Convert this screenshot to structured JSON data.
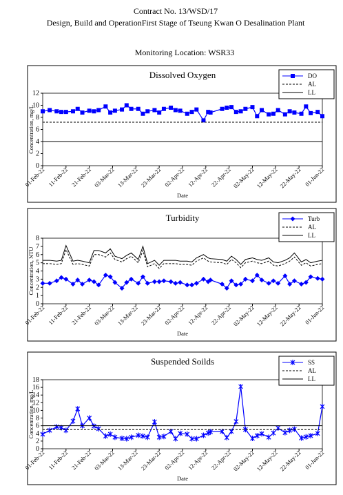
{
  "header": {
    "line1": "Contract No. 13/WSD/17",
    "line2": "Design, Build and OperationFirst Stage  of Tseung Kwan O Desalination Plant",
    "location": "Monitoring Location: WSR33"
  },
  "chart_data": [
    {
      "type": "line",
      "title": "Dissolved Oxygen",
      "ylabel": "Concentration, mg/L",
      "xlabel": "Date",
      "x": [
        "2022-02-01",
        "2022-02-04",
        "2022-02-07",
        "2022-02-09",
        "2022-02-11",
        "2022-02-14",
        "2022-02-16",
        "2022-02-18",
        "2022-02-21",
        "2022-02-23",
        "2022-02-25",
        "2022-02-28",
        "2022-03-02",
        "2022-03-04",
        "2022-03-07",
        "2022-03-09",
        "2022-03-11",
        "2022-03-14",
        "2022-03-16",
        "2022-03-18",
        "2022-03-21",
        "2022-03-23",
        "2022-03-25",
        "2022-03-28",
        "2022-03-30",
        "2022-04-01",
        "2022-04-04",
        "2022-04-06",
        "2022-04-08",
        "2022-04-11",
        "2022-04-13",
        "2022-04-14",
        "2022-04-19",
        "2022-04-21",
        "2022-04-23",
        "2022-04-25",
        "2022-04-27",
        "2022-04-29",
        "2022-05-02",
        "2022-05-04",
        "2022-05-06",
        "2022-05-09",
        "2022-05-11",
        "2022-05-13",
        "2022-05-16",
        "2022-05-18",
        "2022-05-20",
        "2022-05-23",
        "2022-05-25",
        "2022-05-27",
        "2022-05-30",
        "2022-06-01"
      ],
      "xlim": [
        "2022-02-01",
        "2022-06-01"
      ],
      "xticks": [
        {
          "value": "2022-02-01",
          "label": "01-Feb-22"
        },
        {
          "value": "2022-02-11",
          "label": "11-Feb-22"
        },
        {
          "value": "2022-02-21",
          "label": "21-Feb-22"
        },
        {
          "value": "2022-03-03",
          "label": "03-Mar-22"
        },
        {
          "value": "2022-03-13",
          "label": "13-Mar-22"
        },
        {
          "value": "2022-03-23",
          "label": "23-Mar-22"
        },
        {
          "value": "2022-04-02",
          "label": "02-Apr-22"
        },
        {
          "value": "2022-04-12",
          "label": "12-Apr-22"
        },
        {
          "value": "2022-04-22",
          "label": "22-Apr-22"
        },
        {
          "value": "2022-05-02",
          "label": "02-May-22"
        },
        {
          "value": "2022-05-12",
          "label": "12-May-22"
        },
        {
          "value": "2022-05-22",
          "label": "22-May-22"
        },
        {
          "value": "2022-06-01",
          "label": "01-Jun-22"
        }
      ],
      "ylim": [
        0,
        12
      ],
      "yticks": [
        0,
        2,
        4,
        6,
        8,
        10,
        12
      ],
      "series": [
        {
          "name": "DO",
          "color": "#0000ff",
          "marker": "square",
          "dash": false,
          "values": [
            9.0,
            9.2,
            9.0,
            8.9,
            8.9,
            9.0,
            9.4,
            8.8,
            9.1,
            9.0,
            9.2,
            9.8,
            8.8,
            9.1,
            9.3,
            10.0,
            9.4,
            9.4,
            8.6,
            9.0,
            9.2,
            8.8,
            9.4,
            9.6,
            9.2,
            9.1,
            8.6,
            8.9,
            9.3,
            7.5,
            8.9,
            8.8,
            9.4,
            9.6,
            9.7,
            8.9,
            9.0,
            9.4,
            9.7,
            8.2,
            9.2,
            8.5,
            8.6,
            9.2,
            8.5,
            9.0,
            8.8,
            8.6,
            9.8,
            8.7,
            8.9,
            8.2
          ]
        },
        {
          "name": "AL",
          "color": "#000000",
          "dash": true,
          "values": [
            7.2,
            7.2,
            7.2,
            7.2,
            7.2,
            7.2,
            7.2,
            7.2,
            7.2,
            7.2,
            7.2,
            7.2,
            7.2,
            7.2,
            7.2,
            7.2,
            7.2,
            7.2,
            7.2,
            7.2,
            7.2,
            7.2,
            7.2,
            7.2,
            7.2,
            7.2,
            7.2,
            7.2,
            7.2,
            7.2,
            7.2,
            7.2,
            7.2,
            7.2,
            7.2,
            7.2,
            7.2,
            7.2,
            7.2,
            7.2,
            7.2,
            7.2,
            7.2,
            7.2,
            7.2,
            7.2,
            7.2,
            7.2,
            7.2,
            7.2,
            7.2,
            7.2
          ]
        },
        {
          "name": "LL",
          "color": "#000000",
          "dash": false,
          "values": [
            4,
            4,
            4,
            4,
            4,
            4,
            4,
            4,
            4,
            4,
            4,
            4,
            4,
            4,
            4,
            4,
            4,
            4,
            4,
            4,
            4,
            4,
            4,
            4,
            4,
            4,
            4,
            4,
            4,
            4,
            4,
            4,
            4,
            4,
            4,
            4,
            4,
            4,
            4,
            4,
            4,
            4,
            4,
            4,
            4,
            4,
            4,
            4,
            4,
            4,
            4,
            4
          ]
        }
      ]
    },
    {
      "type": "line",
      "title": "Turbidity",
      "ylabel": "Concentration, NTU",
      "xlabel": "Date",
      "x": [
        "2022-02-01",
        "2022-02-04",
        "2022-02-07",
        "2022-02-09",
        "2022-02-11",
        "2022-02-14",
        "2022-02-16",
        "2022-02-18",
        "2022-02-21",
        "2022-02-23",
        "2022-02-25",
        "2022-02-28",
        "2022-03-02",
        "2022-03-04",
        "2022-03-07",
        "2022-03-09",
        "2022-03-11",
        "2022-03-14",
        "2022-03-16",
        "2022-03-18",
        "2022-03-21",
        "2022-03-23",
        "2022-03-25",
        "2022-03-28",
        "2022-03-30",
        "2022-04-01",
        "2022-04-04",
        "2022-04-06",
        "2022-04-08",
        "2022-04-11",
        "2022-04-13",
        "2022-04-14",
        "2022-04-19",
        "2022-04-21",
        "2022-04-23",
        "2022-04-25",
        "2022-04-27",
        "2022-04-29",
        "2022-05-02",
        "2022-05-04",
        "2022-05-06",
        "2022-05-09",
        "2022-05-11",
        "2022-05-13",
        "2022-05-16",
        "2022-05-18",
        "2022-05-20",
        "2022-05-23",
        "2022-05-25",
        "2022-05-27",
        "2022-05-30",
        "2022-06-01"
      ],
      "xlim": [
        "2022-02-01",
        "2022-06-01"
      ],
      "xticks": [
        {
          "value": "2022-02-01",
          "label": "01-Feb-22"
        },
        {
          "value": "2022-02-11",
          "label": "11-Feb-22"
        },
        {
          "value": "2022-02-21",
          "label": "21-Feb-22"
        },
        {
          "value": "2022-03-03",
          "label": "03-Mar-22"
        },
        {
          "value": "2022-03-13",
          "label": "13-Mar-22"
        },
        {
          "value": "2022-03-23",
          "label": "23-Mar-22"
        },
        {
          "value": "2022-04-02",
          "label": "02-Apr-22"
        },
        {
          "value": "2022-04-12",
          "label": "12-Apr-22"
        },
        {
          "value": "2022-04-22",
          "label": "22-Apr-22"
        },
        {
          "value": "2022-05-02",
          "label": "02-May-22"
        },
        {
          "value": "2022-05-12",
          "label": "12-May-22"
        },
        {
          "value": "2022-05-22",
          "label": "22-May-22"
        },
        {
          "value": "2022-06-01",
          "label": "01-Jun-22"
        }
      ],
      "ylim": [
        0,
        8
      ],
      "yticks": [
        0,
        1,
        2,
        3,
        4,
        5,
        6,
        7,
        8
      ],
      "series": [
        {
          "name": "Turb",
          "color": "#0000ff",
          "marker": "diamond",
          "dash": false,
          "values": [
            2.5,
            2.5,
            2.8,
            3.2,
            3.0,
            2.4,
            2.9,
            2.4,
            2.9,
            2.7,
            2.3,
            3.5,
            3.3,
            2.6,
            1.9,
            2.6,
            3.0,
            2.5,
            3.3,
            2.5,
            2.7,
            2.7,
            2.8,
            2.7,
            2.5,
            2.6,
            2.3,
            2.3,
            2.5,
            3.0,
            2.7,
            2.9,
            2.4,
            1.9,
            2.8,
            2.3,
            2.4,
            3.0,
            2.8,
            3.5,
            2.9,
            2.5,
            2.8,
            2.5,
            3.4,
            2.4,
            2.8,
            2.4,
            2.6,
            3.3,
            3.1,
            3.0
          ]
        },
        {
          "name": "AL",
          "color": "#000000",
          "dash": true,
          "values": [
            4.9,
            4.9,
            4.8,
            4.9,
            6.6,
            4.8,
            4.9,
            4.8,
            4.6,
            6.0,
            6.0,
            5.7,
            6.2,
            5.4,
            5.1,
            5.5,
            5.8,
            5.0,
            6.5,
            4.5,
            4.9,
            4.3,
            4.9,
            4.9,
            4.9,
            4.8,
            4.8,
            4.7,
            5.2,
            5.6,
            5.2,
            5.1,
            5.0,
            4.8,
            5.4,
            5.0,
            4.4,
            5.0,
            5.2,
            5.0,
            4.9,
            5.2,
            4.7,
            4.6,
            4.9,
            5.2,
            5.7,
            4.7,
            5.0,
            4.6,
            4.8,
            4.9
          ]
        },
        {
          "name": "LL",
          "color": "#000000",
          "dash": false,
          "values": [
            5.3,
            5.3,
            5.2,
            5.3,
            7.1,
            5.2,
            5.3,
            5.2,
            5.0,
            6.5,
            6.5,
            6.2,
            6.7,
            5.8,
            5.5,
            5.9,
            6.2,
            5.4,
            7.0,
            4.9,
            5.3,
            4.7,
            5.3,
            5.3,
            5.3,
            5.2,
            5.2,
            5.1,
            5.6,
            6.0,
            5.6,
            5.5,
            5.4,
            5.2,
            5.8,
            5.4,
            4.8,
            5.4,
            5.6,
            5.4,
            5.3,
            5.6,
            5.1,
            5.0,
            5.3,
            5.6,
            6.2,
            5.1,
            5.4,
            5.0,
            5.2,
            5.3
          ]
        }
      ]
    },
    {
      "type": "line",
      "title": "Suspended Soilds",
      "ylabel": "Concentration, mg/L",
      "xlabel": "Date",
      "x": [
        "2022-02-01",
        "2022-02-04",
        "2022-02-07",
        "2022-02-09",
        "2022-02-11",
        "2022-02-14",
        "2022-02-16",
        "2022-02-18",
        "2022-02-21",
        "2022-02-23",
        "2022-02-25",
        "2022-02-28",
        "2022-03-02",
        "2022-03-04",
        "2022-03-07",
        "2022-03-09",
        "2022-03-11",
        "2022-03-14",
        "2022-03-16",
        "2022-03-18",
        "2022-03-21",
        "2022-03-23",
        "2022-03-25",
        "2022-03-28",
        "2022-03-30",
        "2022-04-01",
        "2022-04-04",
        "2022-04-06",
        "2022-04-08",
        "2022-04-11",
        "2022-04-13",
        "2022-04-14",
        "2022-04-19",
        "2022-04-21",
        "2022-04-23",
        "2022-04-25",
        "2022-04-27",
        "2022-04-29",
        "2022-05-02",
        "2022-05-04",
        "2022-05-06",
        "2022-05-09",
        "2022-05-11",
        "2022-05-13",
        "2022-05-16",
        "2022-05-18",
        "2022-05-20",
        "2022-05-23",
        "2022-05-25",
        "2022-05-27",
        "2022-05-30",
        "2022-06-01"
      ],
      "xlim": [
        "2022-02-01",
        "2022-06-01"
      ],
      "xticks": [
        {
          "value": "2022-02-01",
          "label": "01-Feb-22"
        },
        {
          "value": "2022-02-11",
          "label": "11-Feb-22"
        },
        {
          "value": "2022-02-21",
          "label": "21-Feb-22"
        },
        {
          "value": "2022-03-03",
          "label": "03-Mar-22"
        },
        {
          "value": "2022-03-13",
          "label": "13-Mar-22"
        },
        {
          "value": "2022-03-23",
          "label": "23-Mar-22"
        },
        {
          "value": "2022-04-02",
          "label": "02-Apr-22"
        },
        {
          "value": "2022-04-12",
          "label": "12-Apr-22"
        },
        {
          "value": "2022-04-22",
          "label": "22-Apr-22"
        },
        {
          "value": "2022-05-02",
          "label": "02-May-22"
        },
        {
          "value": "2022-05-12",
          "label": "12-May-22"
        },
        {
          "value": "2022-05-22",
          "label": "22-May-22"
        },
        {
          "value": "2022-06-01",
          "label": "01-Jun-22"
        }
      ],
      "ylim": [
        0,
        18
      ],
      "yticks": [
        0,
        2,
        4,
        6,
        8,
        10,
        12,
        14,
        16,
        18
      ],
      "series": [
        {
          "name": "SS",
          "color": "#0000ff",
          "marker": "star",
          "dash": false,
          "values": [
            3.8,
            4.8,
            5.7,
            5.5,
            4.8,
            7.2,
            10.4,
            6.0,
            8.0,
            5.9,
            5.2,
            3.3,
            3.8,
            3.0,
            2.7,
            2.6,
            3.0,
            3.5,
            3.3,
            3.0,
            7.0,
            3.0,
            3.2,
            4.5,
            2.6,
            4.0,
            3.8,
            2.6,
            2.6,
            3.5,
            4.1,
            4.4,
            4.5,
            2.9,
            4.5,
            7.1,
            16.2,
            5.0,
            2.7,
            3.4,
            3.9,
            3.0,
            4.1,
            5.4,
            4.2,
            4.8,
            5.1,
            2.8,
            3.1,
            3.4,
            4.0,
            11.0
          ]
        },
        {
          "name": "AL",
          "color": "#000000",
          "dash": true,
          "values": [
            5,
            5,
            5,
            5,
            5,
            5,
            5,
            5,
            5,
            5,
            5,
            5,
            5,
            5,
            5,
            5,
            5,
            5,
            5,
            5,
            5,
            5,
            5,
            5,
            5,
            5,
            5,
            5,
            5,
            5,
            5,
            5,
            5,
            5,
            5,
            5,
            5,
            5,
            5,
            5,
            5,
            5,
            5,
            5,
            5,
            5,
            5,
            5,
            5,
            5,
            5,
            5
          ]
        },
        {
          "name": "LL",
          "color": "#000000",
          "dash": false,
          "values": [
            6,
            6,
            6,
            6,
            6,
            6,
            6,
            6,
            6,
            6,
            6,
            6,
            6,
            6,
            6,
            6,
            6,
            6,
            6,
            6,
            6,
            6,
            6,
            6,
            6,
            6,
            6,
            6,
            6,
            6,
            6,
            6,
            6,
            6,
            6,
            6,
            6,
            6,
            6,
            6,
            6,
            6,
            6,
            6,
            6,
            6,
            6,
            6,
            6,
            6,
            6,
            6
          ]
        }
      ]
    }
  ]
}
